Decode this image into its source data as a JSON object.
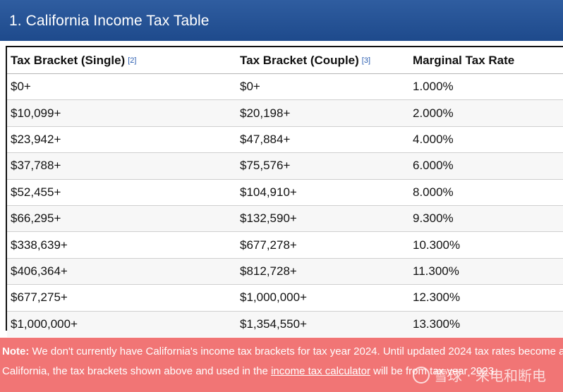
{
  "header": {
    "title": "1. California Income Tax Table"
  },
  "table": {
    "columns": [
      {
        "label": "Tax Bracket (Single)",
        "ref": "[2]"
      },
      {
        "label": "Tax Bracket (Couple)",
        "ref": "[3]"
      },
      {
        "label": "Marginal Tax Rate",
        "ref": ""
      }
    ],
    "rows": [
      [
        "$0+",
        "$0+",
        "1.000%"
      ],
      [
        "$10,099+",
        "$20,198+",
        "2.000%"
      ],
      [
        "$23,942+",
        "$47,884+",
        "4.000%"
      ],
      [
        "$37,788+",
        "$75,576+",
        "6.000%"
      ],
      [
        "$52,455+",
        "$104,910+",
        "8.000%"
      ],
      [
        "$66,295+",
        "$132,590+",
        "9.300%"
      ],
      [
        "$338,639+",
        "$677,278+",
        "10.300%"
      ],
      [
        "$406,364+",
        "$812,728+",
        "11.300%"
      ],
      [
        "$677,275+",
        "$1,000,000+",
        "12.300%"
      ],
      [
        "$1,000,000+",
        "$1,354,550+",
        "13.300%"
      ]
    ]
  },
  "note": {
    "label": "Note:",
    "line1": " We don't currently have California's income tax brackets for tax year 2024. Until updated 2024 tax rates become available for",
    "line2_start": "California, the tax brackets shown above and used in the ",
    "link": "income tax calculator",
    "line2_end": " will be from tax year 2023."
  },
  "watermark": {
    "text": "雪球 · 来电和断电"
  },
  "colors": {
    "header_bg": "#2a5599",
    "note_bg": "#f17575",
    "ref_link": "#2a5db0"
  }
}
